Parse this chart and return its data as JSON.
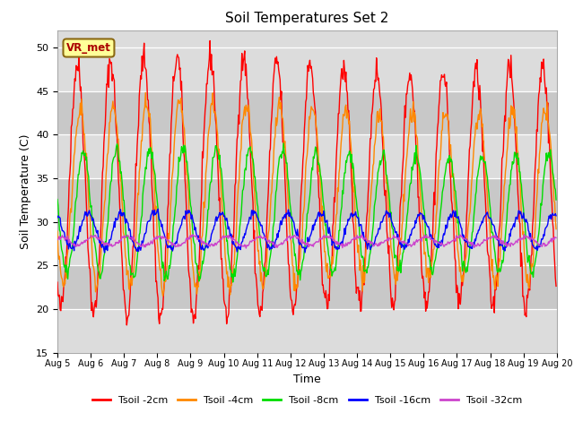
{
  "title": "Soil Temperatures Set 2",
  "xlabel": "Time",
  "ylabel": "Soil Temperature (C)",
  "ylim": [
    15,
    52
  ],
  "colors": {
    "Tsoil -2cm": "#ff0000",
    "Tsoil -4cm": "#ff8800",
    "Tsoil -8cm": "#00dd00",
    "Tsoil -16cm": "#0000ff",
    "Tsoil -32cm": "#cc44cc"
  },
  "legend_labels": [
    "Tsoil -2cm",
    "Tsoil -4cm",
    "Tsoil -8cm",
    "Tsoil -16cm",
    "Tsoil -32cm"
  ],
  "tick_dates": [
    "Aug 5",
    "Aug 6",
    "Aug 7",
    "Aug 8",
    "Aug 9",
    "Aug 10",
    "Aug 11",
    "Aug 12",
    "Aug 13",
    "Aug 14",
    "Aug 15",
    "Aug 16",
    "Aug 17",
    "Aug 18",
    "Aug 19",
    "Aug 20"
  ],
  "num_days": 15,
  "points_per_day": 48,
  "series_params": {
    "Tsoil -2cm": {
      "mean": 34,
      "amp": 14,
      "phase": 0.0,
      "noise": 0.8
    },
    "Tsoil -4cm": {
      "mean": 33,
      "amp": 10,
      "phase": 0.08,
      "noise": 0.6
    },
    "Tsoil -8cm": {
      "mean": 31,
      "amp": 7,
      "phase": 0.18,
      "noise": 0.4
    },
    "Tsoil -16cm": {
      "mean": 29,
      "amp": 2.0,
      "phase": 0.32,
      "noise": 0.25
    },
    "Tsoil -32cm": {
      "mean": 27.8,
      "amp": 0.5,
      "phase": 0.5,
      "noise": 0.12
    }
  },
  "linewidth": 1.0,
  "fig_width": 6.4,
  "fig_height": 4.8,
  "dpi": 100
}
